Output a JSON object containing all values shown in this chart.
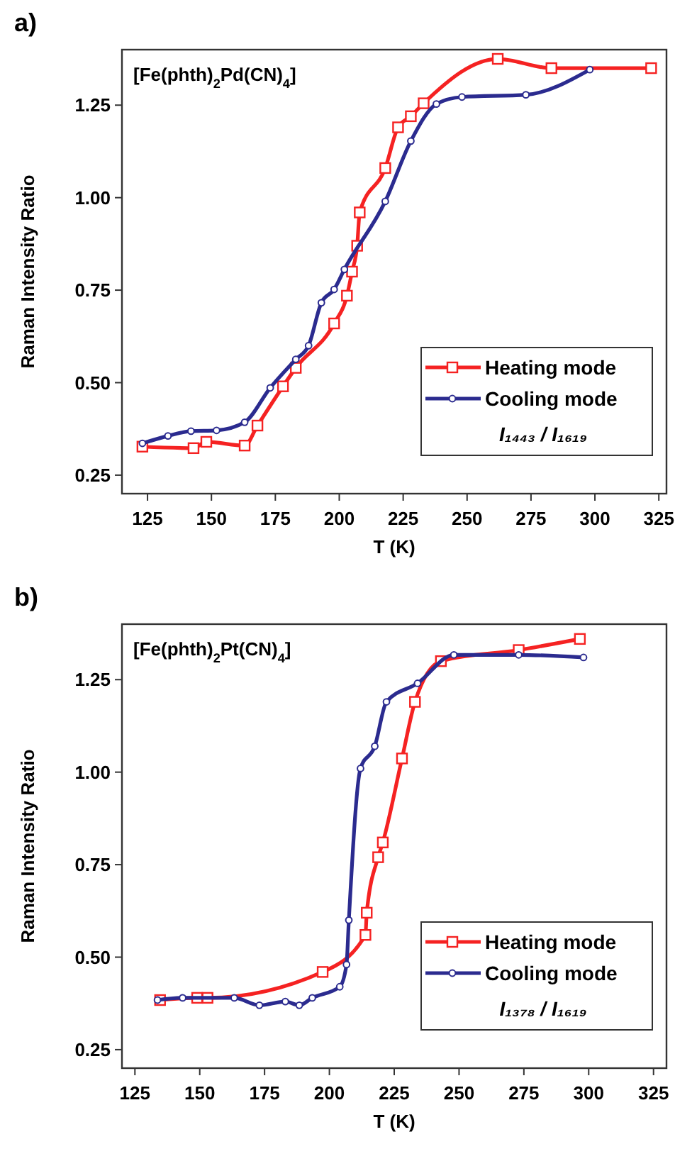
{
  "chart_data": [
    {
      "type": "line",
      "title": "a)",
      "xlabel": "T (K)",
      "ylabel": "Raman Intensity Ratio",
      "annotations": [
        "[Fe(phth)$_{2}$Pd(CN)$_{4}$]",
        "I₁₄₄₃ / I₁₆₁₉"
      ],
      "xlim": [
        115,
        328
      ],
      "ylim": [
        0.2,
        1.4
      ],
      "xticks": [
        125,
        150,
        175,
        200,
        225,
        250,
        275,
        300,
        325
      ],
      "yticks": [
        {
          "value": 0.25,
          "label": "0.25"
        },
        {
          "value": 0.5,
          "label": "0.50"
        },
        {
          "value": 0.75,
          "label": "0.75"
        },
        {
          "value": 1,
          "label": "1.00"
        },
        {
          "value": 1.25,
          "label": "1.25"
        }
      ],
      "grid": false,
      "legend": "bottom right",
      "line_style": "solid",
      "series": [
        {
          "name": "Heating mode",
          "color": "#f52222",
          "marker": "square",
          "x": [
            123,
            143,
            148,
            163,
            168,
            178,
            183,
            198,
            203,
            205,
            207,
            208,
            218,
            223,
            228,
            233,
            262,
            283,
            322
          ],
          "values": [
            0.327,
            0.323,
            0.34,
            0.33,
            0.384,
            0.49,
            0.54,
            0.66,
            0.735,
            0.8,
            0.87,
            0.96,
            1.08,
            1.19,
            1.22,
            1.255,
            1.375,
            1.35,
            1.35
          ]
        },
        {
          "name": "Cooling mode",
          "color": "#2b2b8f",
          "marker": "circle",
          "x": [
            123,
            133,
            142,
            152,
            163,
            173,
            183,
            188,
            193,
            198,
            202,
            218,
            228,
            238,
            248,
            273,
            298
          ],
          "values": [
            0.336,
            0.356,
            0.369,
            0.371,
            0.393,
            0.486,
            0.563,
            0.6,
            0.716,
            0.752,
            0.806,
            0.99,
            1.153,
            1.253,
            1.272,
            1.278,
            1.346
          ]
        }
      ]
    },
    {
      "type": "line",
      "title": "b)",
      "xlabel": "T (K)",
      "ylabel": "Raman Intensity Ratio",
      "annotations": [
        "[Fe(phth)$_{2}$Pt(CN)$_{4}$]",
        "I₁₃₇₈ / I₁₆₁₉"
      ],
      "xlim": [
        120,
        330
      ],
      "ylim": [
        0.2,
        1.4
      ],
      "xticks": [
        125,
        150,
        175,
        200,
        225,
        250,
        275,
        300,
        325
      ],
      "yticks": [
        {
          "value": 0.25,
          "label": "0.25"
        },
        {
          "value": 0.5,
          "label": "0.50"
        },
        {
          "value": 0.75,
          "label": "0.75"
        },
        {
          "value": 1,
          "label": "1.00"
        },
        {
          "value": 1.25,
          "label": "1.25"
        }
      ],
      "grid": false,
      "legend": "bottom right",
      "line_style": "solid",
      "series": [
        {
          "name": "Heating mode",
          "color": "#f52222",
          "marker": "square",
          "x": [
            134.7,
            149,
            153,
            197.4,
            213.9,
            214.4,
            218.8,
            220.6,
            228,
            233,
            243,
            273,
            296.6
          ],
          "values": [
            0.384,
            0.39,
            0.39,
            0.46,
            0.56,
            0.62,
            0.77,
            0.81,
            1.037,
            1.19,
            1.3,
            1.33,
            1.36
          ]
        },
        {
          "name": "Cooling mode",
          "color": "#2b2b8f",
          "marker": "circle",
          "x": [
            133.7,
            143.4,
            163.3,
            173,
            183,
            188.4,
            193.4,
            204,
            206.6,
            207.5,
            212,
            217.5,
            222,
            234,
            248,
            273,
            298
          ],
          "values": [
            0.384,
            0.39,
            0.39,
            0.37,
            0.38,
            0.37,
            0.39,
            0.42,
            0.48,
            0.6,
            1.01,
            1.07,
            1.19,
            1.24,
            1.317,
            1.317,
            1.31
          ]
        }
      ]
    }
  ]
}
